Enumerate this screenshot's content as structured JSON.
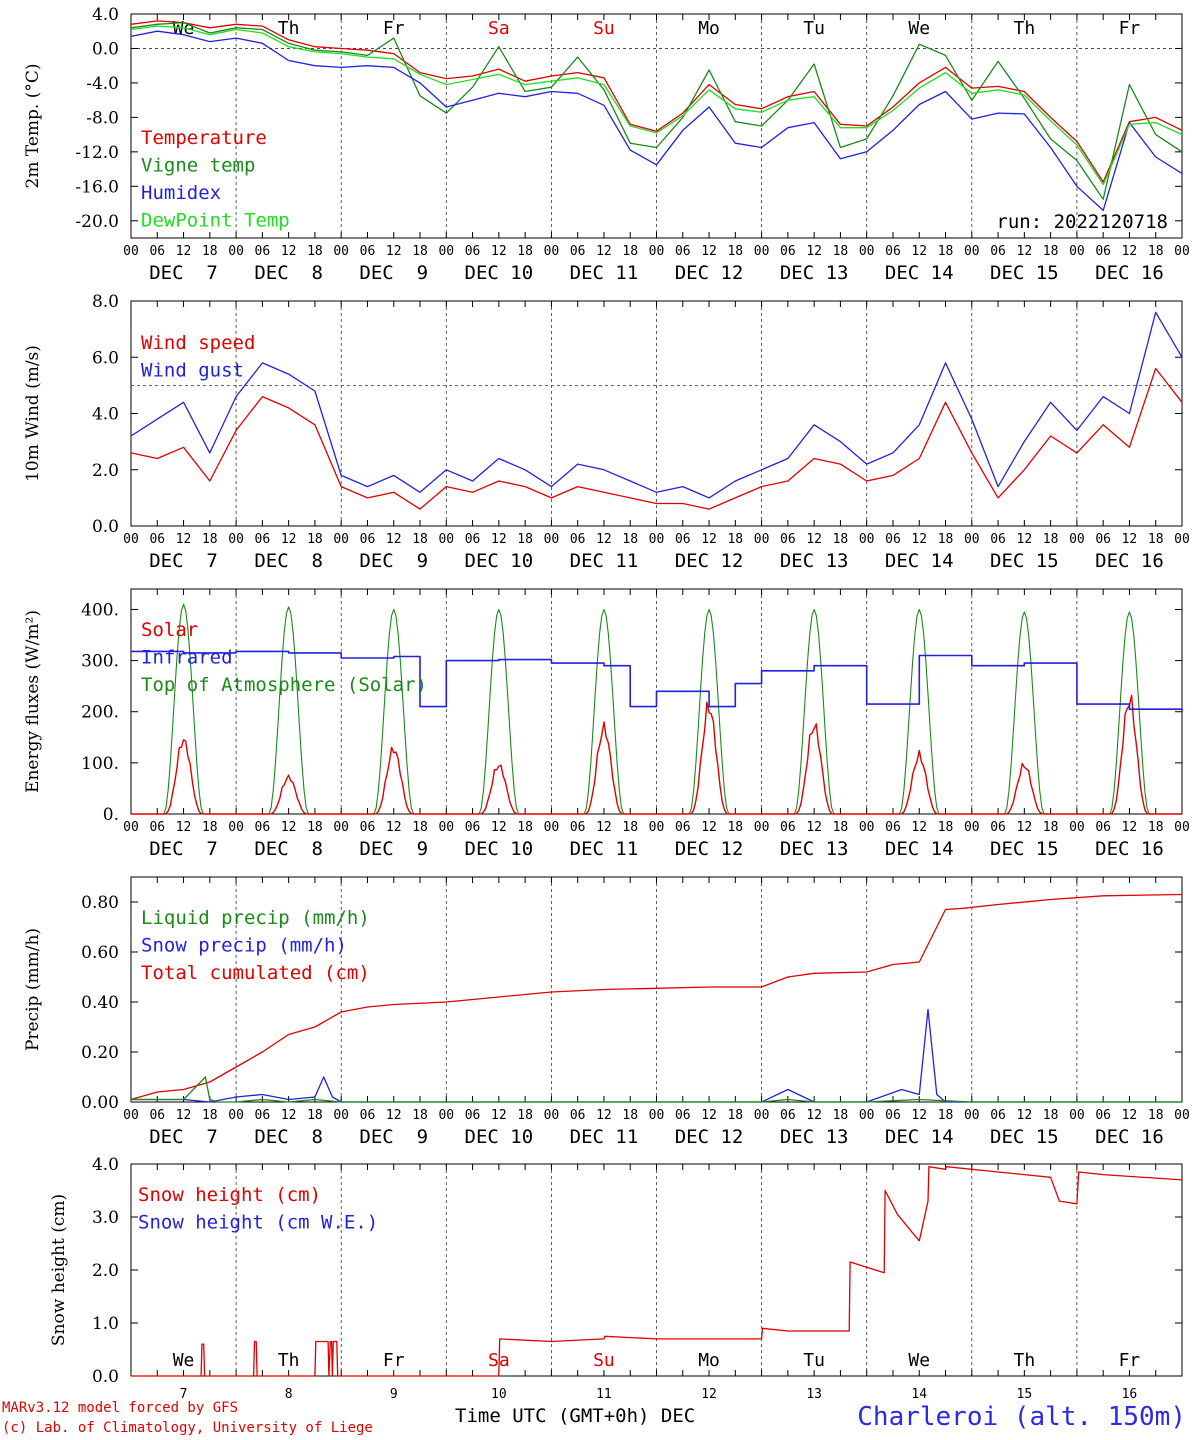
{
  "chart_data": [
    {
      "type": "line",
      "ylabel": "2m Temp. (°C)",
      "ylim": [
        -22,
        4
      ],
      "yticks": [
        "4.0",
        "0.0",
        "-4.0",
        "-8.0",
        "-12.0",
        "-16.0",
        "-20.0"
      ],
      "ytick_values": [
        4,
        0,
        -4,
        -8,
        -12,
        -16,
        -20
      ],
      "ref_line": 0,
      "weekdays": [
        "We",
        "Th",
        "Fr",
        "Sa",
        "Su",
        "Mo",
        "Tu",
        "We",
        "Th",
        "Fr"
      ],
      "weekday_colors": [
        "#000000",
        "#000000",
        "#000000",
        "#e00000",
        "#e00000",
        "#000000",
        "#000000",
        "#000000",
        "#000000",
        "#000000"
      ],
      "run_label": "run: 2022120718",
      "legend": [
        {
          "name": "Temperature",
          "color": "#e00000"
        },
        {
          "name": "Vigne temp",
          "color": "#1a8a1a"
        },
        {
          "name": "Humidex",
          "color": "#2222dd"
        },
        {
          "name": "DewPoint Temp",
          "color": "#22dd22"
        }
      ],
      "series": [
        {
          "name": "Temperature",
          "color": "#e00000",
          "x": [
            0,
            6,
            12,
            18,
            24,
            30,
            36,
            42,
            48,
            54,
            60,
            66,
            72,
            78,
            84,
            90,
            96,
            102,
            108,
            114,
            120,
            126,
            132,
            138,
            144,
            150,
            156,
            162,
            168,
            174,
            180,
            186,
            192,
            198,
            204,
            210,
            216,
            222,
            228,
            234,
            240
          ],
          "values": [
            2.8,
            3.2,
            3.0,
            2.4,
            2.8,
            2.6,
            1.0,
            0.2,
            0.0,
            -0.2,
            -0.6,
            -2.8,
            -3.5,
            -3.2,
            -2.4,
            -3.8,
            -3.2,
            -2.8,
            -3.4,
            -8.8,
            -9.6,
            -7.5,
            -4.2,
            -6.5,
            -7.0,
            -5.6,
            -5.0,
            -8.8,
            -9.0,
            -6.8,
            -4.0,
            -2.2,
            -4.6,
            -4.4,
            -5.0,
            -8.0,
            -10.8,
            -15.5,
            -8.5,
            -8.0,
            -9.5
          ]
        },
        {
          "name": "Vigne temp",
          "color": "#1a8a1a",
          "x": [
            0,
            6,
            12,
            18,
            24,
            30,
            36,
            42,
            48,
            54,
            60,
            66,
            72,
            78,
            84,
            90,
            96,
            102,
            108,
            114,
            120,
            126,
            132,
            138,
            144,
            150,
            156,
            162,
            168,
            174,
            180,
            186,
            192,
            198,
            204,
            210,
            216,
            222,
            228,
            234,
            240
          ],
          "values": [
            2.4,
            2.8,
            3.0,
            1.8,
            2.4,
            2.2,
            0.6,
            -0.2,
            -0.4,
            -0.8,
            1.2,
            -5.5,
            -7.5,
            -4.5,
            0.2,
            -5.0,
            -4.5,
            -1.0,
            -4.8,
            -11.0,
            -11.5,
            -8.0,
            -2.5,
            -8.5,
            -9.0,
            -6.0,
            -1.8,
            -11.5,
            -10.5,
            -5.5,
            0.5,
            -0.8,
            -6.0,
            -1.5,
            -5.8,
            -10.5,
            -13.0,
            -17.5,
            -4.2,
            -10.0,
            -12.0
          ]
        },
        {
          "name": "Humidex",
          "color": "#2222dd",
          "x": [
            0,
            6,
            12,
            18,
            24,
            30,
            36,
            42,
            48,
            54,
            60,
            66,
            72,
            78,
            84,
            90,
            96,
            102,
            108,
            114,
            120,
            126,
            132,
            138,
            144,
            150,
            156,
            162,
            168,
            174,
            180,
            186,
            192,
            198,
            204,
            210,
            216,
            222,
            228,
            234,
            240
          ],
          "values": [
            1.4,
            2.0,
            1.6,
            0.8,
            1.2,
            0.6,
            -1.4,
            -2.0,
            -2.2,
            -2.0,
            -2.2,
            -4.0,
            -6.8,
            -6.0,
            -5.2,
            -5.6,
            -5.0,
            -5.2,
            -6.6,
            -11.8,
            -13.5,
            -9.5,
            -6.8,
            -11.0,
            -11.5,
            -9.2,
            -8.6,
            -12.8,
            -12.0,
            -9.5,
            -6.5,
            -5.0,
            -8.2,
            -7.5,
            -7.6,
            -11.5,
            -16.0,
            -18.8,
            -8.6,
            -12.6,
            -14.5
          ]
        },
        {
          "name": "DewPoint Temp",
          "color": "#22dd22",
          "x": [
            0,
            6,
            12,
            18,
            24,
            30,
            36,
            42,
            48,
            54,
            60,
            66,
            72,
            78,
            84,
            90,
            96,
            102,
            108,
            114,
            120,
            126,
            132,
            138,
            144,
            150,
            156,
            162,
            168,
            174,
            180,
            186,
            192,
            198,
            204,
            210,
            216,
            222,
            228,
            234,
            240
          ],
          "values": [
            2.2,
            2.6,
            2.4,
            1.6,
            2.2,
            1.8,
            0.2,
            -0.4,
            -0.6,
            -1.0,
            -1.2,
            -3.0,
            -4.2,
            -3.6,
            -3.0,
            -4.2,
            -3.8,
            -3.4,
            -4.2,
            -9.0,
            -9.8,
            -7.8,
            -4.8,
            -7.0,
            -7.4,
            -6.0,
            -5.6,
            -9.2,
            -9.2,
            -7.2,
            -4.6,
            -2.8,
            -5.2,
            -4.8,
            -5.4,
            -8.4,
            -11.2,
            -15.8,
            -8.8,
            -8.6,
            -10.0
          ]
        }
      ]
    },
    {
      "type": "line",
      "ylabel": "10m Wind (m/s)",
      "ylim": [
        0,
        8
      ],
      "yticks": [
        "0.0",
        "2.0",
        "4.0",
        "6.0",
        "8.0"
      ],
      "ytick_values": [
        0,
        2,
        4,
        6,
        8
      ],
      "ref_line": 5,
      "legend": [
        {
          "name": "Wind speed",
          "color": "#e00000"
        },
        {
          "name": "Wind gust",
          "color": "#2222dd"
        }
      ],
      "series": [
        {
          "name": "Wind speed",
          "color": "#e00000",
          "x": [
            0,
            6,
            12,
            18,
            24,
            30,
            36,
            42,
            48,
            54,
            60,
            66,
            72,
            78,
            84,
            90,
            96,
            102,
            108,
            114,
            120,
            126,
            132,
            138,
            144,
            150,
            156,
            162,
            168,
            174,
            180,
            186,
            192,
            198,
            204,
            210,
            216,
            222,
            228,
            234,
            240
          ],
          "values": [
            2.6,
            2.4,
            2.8,
            1.6,
            3.4,
            4.6,
            4.2,
            3.6,
            1.4,
            1.0,
            1.2,
            0.6,
            1.4,
            1.2,
            1.6,
            1.4,
            1.0,
            1.4,
            1.2,
            1.0,
            0.8,
            0.8,
            0.6,
            1.0,
            1.4,
            1.6,
            2.4,
            2.2,
            1.6,
            1.8,
            2.4,
            4.4,
            2.6,
            1.0,
            2.0,
            3.2,
            2.6,
            3.6,
            2.8,
            5.6,
            4.4
          ]
        },
        {
          "name": "Wind gust",
          "color": "#2222dd",
          "x": [
            0,
            6,
            12,
            18,
            24,
            30,
            36,
            42,
            48,
            54,
            60,
            66,
            72,
            78,
            84,
            90,
            96,
            102,
            108,
            114,
            120,
            126,
            132,
            138,
            144,
            150,
            156,
            162,
            168,
            174,
            180,
            186,
            192,
            198,
            204,
            210,
            216,
            222,
            228,
            234,
            240
          ],
          "values": [
            3.2,
            3.8,
            4.4,
            2.6,
            4.6,
            5.8,
            5.4,
            4.8,
            1.8,
            1.4,
            1.8,
            1.2,
            2.0,
            1.6,
            2.4,
            2.0,
            1.4,
            2.2,
            2.0,
            1.6,
            1.2,
            1.4,
            1.0,
            1.6,
            2.0,
            2.4,
            3.6,
            3.0,
            2.2,
            2.6,
            3.6,
            5.8,
            3.8,
            1.4,
            3.0,
            4.4,
            3.4,
            4.6,
            4.0,
            7.6,
            6.0
          ]
        }
      ]
    },
    {
      "type": "line",
      "ylabel": "Energy fluxes (W/m²)",
      "ylim": [
        0,
        440
      ],
      "yticks": [
        "0.",
        "100.",
        "200.",
        "300.",
        "400."
      ],
      "ytick_values": [
        0,
        100,
        200,
        300,
        400
      ],
      "legend": [
        {
          "name": "Solar",
          "color": "#e00000"
        },
        {
          "name": "Infrared",
          "color": "#2222dd"
        },
        {
          "name": "Top of Atmosphere (Solar)",
          "color": "#1a8a1a"
        }
      ],
      "toa_peak": [
        410,
        405,
        400,
        400,
        400,
        400,
        400,
        400,
        395,
        395
      ],
      "solar_peak": [
        160,
        80,
        140,
        105,
        185,
        230,
        190,
        125,
        105,
        245
      ],
      "infrared": {
        "x": [
          0,
          12,
          24,
          36,
          48,
          60,
          66,
          72,
          84,
          96,
          108,
          114,
          120,
          132,
          138,
          144,
          156,
          168,
          180,
          192,
          204,
          216,
          228,
          240
        ],
        "values": [
          318,
          315,
          318,
          315,
          305,
          308,
          210,
          300,
          302,
          295,
          290,
          210,
          240,
          210,
          255,
          280,
          290,
          215,
          310,
          290,
          295,
          215,
          205,
          200
        ]
      }
    },
    {
      "type": "line",
      "ylabel": "Precip (mm/h)",
      "ylim": [
        0,
        0.9
      ],
      "yticks": [
        "0.00",
        "0.20",
        "0.40",
        "0.60",
        "0.80"
      ],
      "ytick_values": [
        0,
        0.2,
        0.4,
        0.6,
        0.8
      ],
      "legend": [
        {
          "name": "Liquid precip (mm/h)",
          "color": "#1a8a1a"
        },
        {
          "name": "Snow precip (mm/h)",
          "color": "#2222dd"
        },
        {
          "name": "Total cumulated (cm)",
          "color": "#e00000"
        }
      ],
      "series": [
        {
          "name": "Total cumulated (cm)",
          "color": "#e00000",
          "x": [
            0,
            6,
            12,
            18,
            24,
            30,
            36,
            42,
            48,
            54,
            60,
            72,
            84,
            96,
            108,
            120,
            132,
            144,
            150,
            156,
            168,
            174,
            180,
            186,
            190,
            198,
            210,
            222,
            240
          ],
          "values": [
            0.01,
            0.04,
            0.05,
            0.08,
            0.14,
            0.2,
            0.27,
            0.3,
            0.36,
            0.38,
            0.39,
            0.4,
            0.42,
            0.44,
            0.45,
            0.455,
            0.46,
            0.46,
            0.5,
            0.515,
            0.52,
            0.55,
            0.56,
            0.77,
            0.775,
            0.79,
            0.81,
            0.825,
            0.83
          ]
        },
        {
          "name": "Snow precip (mm/h)",
          "color": "#2222dd",
          "x": [
            0,
            12,
            18,
            24,
            30,
            36,
            42,
            44,
            46,
            48,
            60,
            96,
            144,
            150,
            156,
            168,
            176,
            180,
            182,
            184,
            186,
            192,
            240
          ],
          "values": [
            0.01,
            0.01,
            0.0,
            0.02,
            0.03,
            0.01,
            0.02,
            0.1,
            0.02,
            0.0,
            0.0,
            0.0,
            0.0,
            0.05,
            0.0,
            0.0,
            0.05,
            0.03,
            0.37,
            0.03,
            0.0,
            0.0,
            0.0
          ]
        },
        {
          "name": "Liquid precip (mm/h)",
          "color": "#1a8a1a",
          "x": [
            0,
            12,
            17,
            18,
            20,
            24,
            30,
            36,
            42,
            48,
            60,
            96,
            144,
            150,
            156,
            168,
            180,
            192,
            240
          ],
          "values": [
            0.01,
            0.01,
            0.1,
            0.01,
            0.0,
            0.0,
            0.01,
            0.0,
            0.01,
            0.0,
            0.0,
            0.0,
            0.0,
            0.01,
            0.0,
            0.0,
            0.01,
            0.0,
            0.0
          ]
        }
      ]
    },
    {
      "type": "line",
      "ylabel": "Snow height (cm)",
      "ylim": [
        0,
        4
      ],
      "yticks": [
        "0.0",
        "1.0",
        "2.0",
        "3.0",
        "4.0"
      ],
      "ytick_values": [
        0,
        1,
        2,
        3,
        4
      ],
      "weekdays": [
        "We",
        "Th",
        "Fr",
        "Sa",
        "Su",
        "Mo",
        "Tu",
        "We",
        "Th",
        "Fr"
      ],
      "weekday_colors": [
        "#000000",
        "#000000",
        "#000000",
        "#e00000",
        "#e00000",
        "#000000",
        "#000000",
        "#000000",
        "#000000",
        "#000000"
      ],
      "day_numbers": [
        "7",
        "8",
        "9",
        "10",
        "11",
        "12",
        "13",
        "14",
        "15",
        "16"
      ],
      "legend": [
        {
          "name": "Snow height (cm)",
          "color": "#e00000"
        },
        {
          "name": "Snow height (cm W.E.)",
          "color": "#2222dd"
        }
      ],
      "series": [
        {
          "name": "Snow height (cm)",
          "color": "#e00000",
          "x": [
            0,
            16,
            16.2,
            16.6,
            16.8,
            28,
            28.2,
            28.6,
            28.8,
            42,
            42.2,
            45,
            45.2,
            45.5,
            45.8,
            46,
            46.2,
            47,
            47.2,
            84,
            84.2,
            96,
            108,
            108.2,
            120,
            144,
            144.2,
            150,
            156,
            164,
            164.2,
            168,
            172,
            172.2,
            175,
            178,
            180,
            182,
            182.2,
            186,
            186.2,
            198,
            204,
            210,
            212,
            216,
            216.4,
            222,
            240
          ],
          "values": [
            0,
            0,
            0.6,
            0.6,
            0,
            0,
            0.65,
            0.65,
            0,
            0,
            0.65,
            0.65,
            0,
            0.65,
            0.65,
            0,
            0.65,
            0.65,
            0,
            0,
            0.7,
            0.65,
            0.7,
            0.75,
            0.7,
            0.7,
            0.9,
            0.85,
            0.85,
            0.85,
            2.15,
            2.05,
            1.95,
            3.5,
            3.05,
            2.75,
            2.55,
            3.3,
            3.95,
            3.9,
            3.95,
            3.85,
            3.8,
            3.75,
            3.3,
            3.25,
            3.85,
            3.8,
            3.7
          ]
        }
      ]
    }
  ],
  "x_axis": {
    "hour_labels": [
      "00",
      "06",
      "12",
      "18"
    ],
    "final_hour_label": "00",
    "dates": [
      "DEC  7",
      "DEC  8",
      "DEC  9",
      "DEC 10",
      "DEC 11",
      "DEC 12",
      "DEC 13",
      "DEC 14",
      "DEC 15",
      "DEC 16"
    ],
    "range_hours": [
      0,
      240
    ]
  },
  "footer": {
    "model": "MARv3.12 model forced by GFS",
    "lab": "(c) Lab. of Climatology, University of Liege",
    "axis_title": "Time UTC (GMT+0h) DEC",
    "station": "Charleroi (alt. 150m)"
  }
}
